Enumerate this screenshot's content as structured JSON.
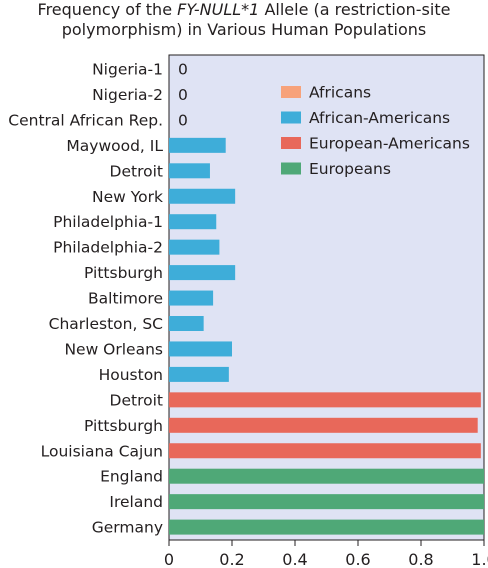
{
  "chart_data": {
    "type": "bar",
    "orientation": "horizontal",
    "title_line1": "Frequency of the FY-NULL*1 Allele (a restriction-site",
    "title_line1_parts": [
      "Frequency of the ",
      "FY-NULL*1",
      " Allele (a restriction-site"
    ],
    "title_line2": "polymorphism) in Various Human Populations",
    "xlim": [
      0,
      1.0
    ],
    "xticks": [
      0,
      0.2,
      0.4,
      0.6,
      0.8,
      1.0
    ],
    "xtick_labels": [
      "0",
      "0.2",
      "0.4",
      "0.6",
      "0.8",
      "1.0"
    ],
    "grid": false,
    "legend_position": "top-right",
    "series": [
      {
        "name": "Africans",
        "color": "#f7a27a",
        "categories": [
          "Nigeria-1",
          "Nigeria-2",
          "Central African Rep."
        ],
        "values": [
          0,
          0,
          0
        ],
        "value_labels": [
          "0",
          "0",
          "0"
        ]
      },
      {
        "name": "African-Americans",
        "color": "#3eadd9",
        "categories": [
          "Maywood, IL",
          "Detroit",
          "New York",
          "Philadelphia-1",
          "Philadelphia-2",
          "Pittsburgh",
          "Baltimore",
          "Charleston, SC",
          "New Orleans",
          "Houston"
        ],
        "values": [
          0.18,
          0.13,
          0.21,
          0.15,
          0.16,
          0.21,
          0.14,
          0.11,
          0.2,
          0.19
        ]
      },
      {
        "name": "European-Americans",
        "color": "#e8685a",
        "categories": [
          "Detroit",
          "Pittsburgh",
          "Louisiana Cajun"
        ],
        "values": [
          0.99,
          0.98,
          0.99
        ]
      },
      {
        "name": "Europeans",
        "color": "#4fa877",
        "categories": [
          "England",
          "Ireland",
          "Germany"
        ],
        "values": [
          1.0,
          1.0,
          1.0
        ]
      }
    ],
    "plot_background": "#dfe3f4"
  }
}
